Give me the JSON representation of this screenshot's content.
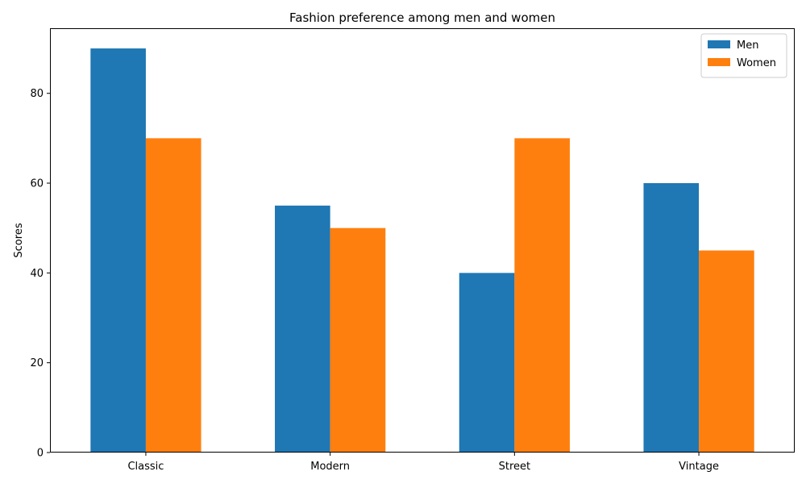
{
  "chart_data": {
    "type": "bar",
    "title": "Fashion preference among men and women",
    "xlabel": "",
    "ylabel": "Scores",
    "categories": [
      "Classic",
      "Modern",
      "Street",
      "Vintage"
    ],
    "series": [
      {
        "name": "Men",
        "values": [
          90,
          55,
          40,
          60
        ],
        "color": "#1f77b4"
      },
      {
        "name": "Women",
        "values": [
          70,
          50,
          70,
          45
        ],
        "color": "#ff7f0e"
      }
    ],
    "ylim": [
      0,
      94.5
    ],
    "yticks": [
      0,
      20,
      40,
      60,
      80
    ],
    "legend": "top-right",
    "grid": false
  }
}
